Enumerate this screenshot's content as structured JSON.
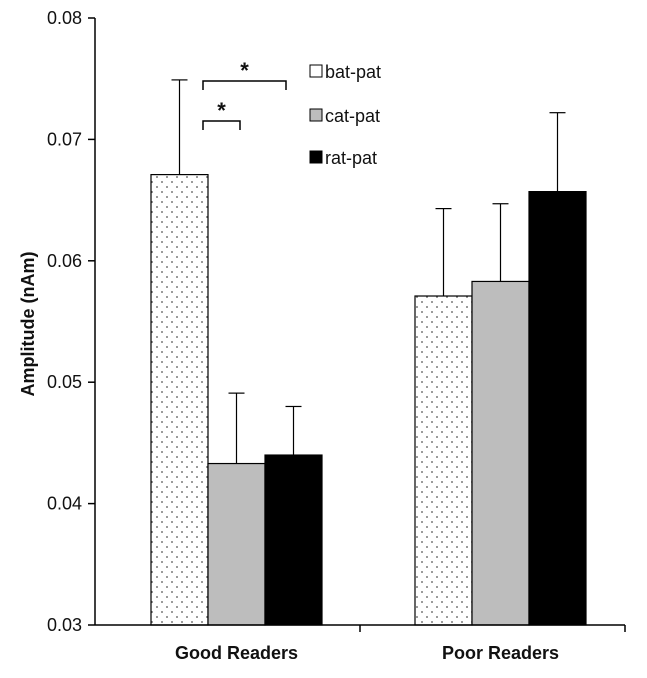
{
  "chart_data": {
    "type": "bar",
    "ylabel": "Amplitude (nAm)",
    "xlabel": "",
    "ylim": [
      0.03,
      0.08
    ],
    "yticks": [
      "0.03",
      "0.04",
      "0.05",
      "0.06",
      "0.07",
      "0.08"
    ],
    "categories": [
      "Good Readers",
      "Poor Readers"
    ],
    "series": [
      {
        "name": "bat-pat",
        "pattern": "dotted",
        "color": "#ffffff",
        "values": [
          0.0671,
          0.0571
        ],
        "errors": [
          0.0078,
          0.0072
        ]
      },
      {
        "name": "cat-pat",
        "pattern": "solid",
        "color": "#bdbdbd",
        "values": [
          0.0433,
          0.0583
        ],
        "errors": [
          0.0058,
          0.0064
        ]
      },
      {
        "name": "rat-pat",
        "pattern": "solid",
        "color": "#000000",
        "values": [
          0.044,
          0.0657
        ],
        "errors": [
          0.004,
          0.0065
        ]
      }
    ],
    "significance": [
      {
        "label": "*",
        "category": "Good Readers",
        "from_series": 0,
        "to_series": 2
      },
      {
        "label": "*",
        "category": "Good Readers",
        "from_series": 0,
        "to_series": 1
      }
    ],
    "legend_position": "top-center",
    "grid": false
  }
}
